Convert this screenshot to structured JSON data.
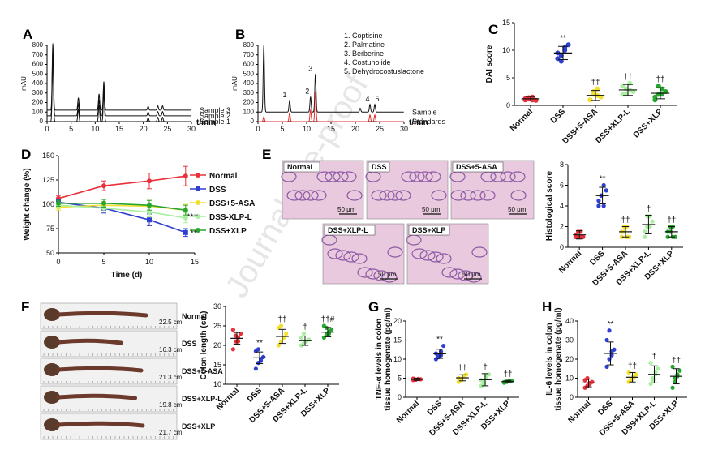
{
  "watermark": "Journal Pre-proof",
  "panels": {
    "A": {
      "letter": "A"
    },
    "B": {
      "letter": "B"
    },
    "C": {
      "letter": "C"
    },
    "D": {
      "letter": "D"
    },
    "E": {
      "letter": "E"
    },
    "F": {
      "letter": "F"
    },
    "G": {
      "letter": "G"
    },
    "H": {
      "letter": "H"
    }
  },
  "colors": {
    "normal": "#e8313a",
    "dss": "#2f3fd0",
    "asa": "#f2e030",
    "xlpl": "#a9efa0",
    "xlp": "#27a52f"
  },
  "chart_data": [
    {
      "id": "A",
      "type": "line",
      "ylabel": "mAU",
      "xlabel": "t/min",
      "xlim": [
        0,
        30
      ],
      "x_ticks": [
        "0",
        "5",
        "10",
        "15",
        "20",
        "25",
        "30"
      ],
      "y_ticks": [
        "0",
        "100",
        "200",
        "300",
        "400",
        "500",
        "600",
        "700",
        "800"
      ],
      "ylim": [
        0,
        800
      ],
      "series": [
        {
          "name": "Sample 3",
          "baseline": 120,
          "peaks": [
            [
              1.2,
              700
            ],
            [
              6.5,
              130
            ],
            [
              10.8,
              170
            ],
            [
              11.8,
              300
            ],
            [
              21,
              40
            ],
            [
              23,
              45
            ],
            [
              24,
              45
            ]
          ]
        },
        {
          "name": "Sample 2",
          "baseline": 60,
          "peaks": [
            [
              1.2,
              690
            ],
            [
              6.5,
              130
            ],
            [
              10.8,
              170
            ],
            [
              11.8,
              300
            ],
            [
              21,
              40
            ],
            [
              23,
              45
            ],
            [
              24,
              45
            ]
          ]
        },
        {
          "name": "Sample 1",
          "baseline": 0,
          "peaks": [
            [
              1.2,
              720
            ],
            [
              6.5,
              130
            ],
            [
              10.8,
              170
            ],
            [
              11.8,
              300
            ],
            [
              21,
              40
            ],
            [
              23,
              45
            ],
            [
              24,
              45
            ]
          ]
        }
      ]
    },
    {
      "id": "B",
      "type": "line",
      "ylabel": "mAU",
      "xlabel": "t/min",
      "xlim": [
        0,
        30
      ],
      "x_ticks": [
        "0",
        "5",
        "10",
        "15",
        "20",
        "25",
        "30"
      ],
      "y_ticks": [
        "0",
        "100",
        "200",
        "300",
        "400",
        "500",
        "600",
        "700",
        "800"
      ],
      "ylim": [
        0,
        800
      ],
      "legend": [
        "1. Coptisine",
        "2. Palmatine",
        "3. Berberine",
        "4. Costunolide",
        "5. Dehydrocostuslactone"
      ],
      "peak_labels": [
        {
          "label": "1",
          "x": 6.5
        },
        {
          "label": "2",
          "x": 10.8
        },
        {
          "label": "3",
          "x": 11.8
        },
        {
          "label": "4",
          "x": 23
        },
        {
          "label": "5",
          "x": 24
        }
      ],
      "series": [
        {
          "name": "Sample",
          "color": "#111111",
          "baseline": 100,
          "peaks": [
            [
              1.2,
              700
            ],
            [
              6.5,
              120
            ],
            [
              10.8,
              160
            ],
            [
              11.8,
              400
            ],
            [
              21,
              40
            ],
            [
              23,
              80
            ],
            [
              24,
              80
            ]
          ]
        },
        {
          "name": "Standards",
          "color": "#e03030",
          "baseline": 0,
          "peaks": [
            [
              1.2,
              50
            ],
            [
              6.5,
              90
            ],
            [
              10.8,
              120
            ],
            [
              11.8,
              310
            ],
            [
              23,
              70
            ],
            [
              24,
              70
            ]
          ]
        }
      ]
    },
    {
      "id": "C",
      "type": "scatter",
      "ylabel": "DAI score",
      "ylim": [
        0,
        15
      ],
      "y_ticks": [
        "0",
        "5",
        "10",
        "15"
      ],
      "categories": [
        "Normal",
        "DSS",
        "DSS+5-ASA",
        "DSS+XLP-L",
        "DSS+XLP"
      ],
      "means": [
        1.2,
        9.5,
        1.8,
        2.8,
        2.2
      ],
      "sd": [
        0.4,
        1.2,
        0.9,
        1.0,
        1.0
      ],
      "points": [
        [
          1.0,
          1.3,
          1.5,
          0.9,
          1.2,
          1.4,
          1.0
        ],
        [
          8.5,
          9.0,
          10.0,
          11.0,
          9.5,
          8.0,
          10.5
        ],
        [
          1.0,
          2.0,
          3.0,
          1.5,
          1.0,
          2.5,
          1.8
        ],
        [
          2.0,
          3.0,
          4.0,
          2.5,
          3.5,
          2.0,
          2.8
        ],
        [
          1.5,
          2.0,
          3.0,
          2.5,
          1.0,
          3.5,
          2.0
        ]
      ],
      "annotations": [
        "",
        "**",
        "††",
        "††",
        "††"
      ]
    },
    {
      "id": "D",
      "type": "line",
      "ylabel": "Weight change (%)",
      "xlabel": "Time (d)",
      "xlim": [
        0,
        15
      ],
      "ylim": [
        50,
        150
      ],
      "x_ticks": [
        "0",
        "5",
        "10",
        "15"
      ],
      "y_ticks": [
        "50",
        "75",
        "100",
        "125",
        "150"
      ],
      "x": [
        0,
        5,
        10,
        14
      ],
      "series": [
        {
          "name": "Normal",
          "values": [
            106,
            119,
            124,
            129
          ],
          "err": [
            3,
            5,
            8,
            10
          ]
        },
        {
          "name": "DSS",
          "values": [
            102,
            96,
            84,
            71
          ],
          "err": [
            3,
            5,
            6,
            4
          ]
        },
        {
          "name": "DSS+5-ASA",
          "values": [
            97,
            99,
            98,
            94
          ],
          "err": [
            3,
            4,
            6,
            6
          ]
        },
        {
          "name": "DSS-XLP-L",
          "values": [
            99,
            96,
            92,
            86
          ],
          "err": [
            3,
            4,
            5,
            5
          ]
        },
        {
          "name": "DSS+XLP",
          "values": [
            101,
            101,
            99,
            94
          ],
          "err": [
            3,
            4,
            5,
            5
          ]
        }
      ],
      "end_annotations": [
        "**†",
        "**"
      ]
    },
    {
      "id": "E",
      "type": "scatter",
      "ylabel": "Histological score",
      "ylim": [
        0,
        8
      ],
      "y_ticks": [
        "0",
        "2",
        "4",
        "6",
        "8"
      ],
      "categories": [
        "Normal",
        "DSS",
        "DSS+5-ASA",
        "DSS+XLP-L",
        "DSS+XLP"
      ],
      "means": [
        1.2,
        5.0,
        1.5,
        2.2,
        1.5
      ],
      "sd": [
        0.4,
        0.8,
        0.5,
        0.9,
        0.5
      ],
      "points": [
        [
          1.0,
          1.0,
          1.5,
          1.0,
          1.2,
          1.5,
          1.0
        ],
        [
          4.0,
          5.0,
          6.0,
          5.5,
          4.5,
          5.0,
          4.0
        ],
        [
          1.0,
          1.5,
          2.0,
          1.0,
          1.5,
          2.0,
          1.0
        ],
        [
          1.0,
          2.0,
          3.0,
          2.5,
          1.5,
          3.0,
          2.0
        ],
        [
          1.0,
          1.5,
          2.0,
          1.0,
          1.5,
          2.0,
          1.0
        ]
      ],
      "annotations": [
        "",
        "**",
        "††",
        "†",
        "††"
      ]
    },
    {
      "id": "F",
      "type": "scatter",
      "ylabel": "Colon length (cm)",
      "ylim": [
        10,
        30
      ],
      "y_ticks": [
        "10",
        "15",
        "20",
        "25",
        "30"
      ],
      "categories": [
        "Normal",
        "DSS",
        "DSS+5-ASA",
        "DSS+XLP-L",
        "DSS+XLP"
      ],
      "means": [
        21.8,
        16.8,
        22.3,
        21.2,
        23.4
      ],
      "sd": [
        1.5,
        1.5,
        1.8,
        1.2,
        1.2
      ],
      "points": [
        [
          19.0,
          21.0,
          22.0,
          23.0,
          24.0,
          22.5,
          21.0
        ],
        [
          14.0,
          15.5,
          16.0,
          17.0,
          18.5,
          19.0,
          16.5
        ],
        [
          20.0,
          21.0,
          22.0,
          23.0,
          24.5,
          25.0,
          22.0
        ],
        [
          20.0,
          20.5,
          21.0,
          21.5,
          22.0,
          23.0,
          21.0
        ],
        [
          22.0,
          23.0,
          23.5,
          24.0,
          25.0,
          24.5,
          23.0
        ]
      ],
      "annotations": [
        "",
        "**",
        "††",
        "†",
        "††#"
      ]
    },
    {
      "id": "G",
      "type": "scatter",
      "ylabel": "TNF-α levels in colon tissue homogenate (pg/ml)",
      "ylim": [
        0,
        20
      ],
      "y_ticks": [
        "0",
        "5",
        "10",
        "15",
        "20"
      ],
      "categories": [
        "Normal",
        "DSS",
        "DSS+5-ASA",
        "DSS+XLP-L",
        "DSS+XLP"
      ],
      "means": [
        4.7,
        11.4,
        5.1,
        4.6,
        4.1
      ],
      "sd": [
        0.3,
        1.2,
        0.8,
        1.6,
        0.3
      ],
      "points": [
        [
          4.5,
          4.6,
          4.8,
          4.7,
          4.9,
          4.6,
          4.8
        ],
        [
          10.0,
          11.0,
          12.0,
          13.5,
          11.5,
          10.5,
          11.0
        ],
        [
          4.0,
          4.5,
          5.5,
          6.0,
          5.0,
          4.8,
          5.5
        ],
        [
          3.0,
          4.0,
          5.5,
          6.0,
          4.5,
          3.5,
          5.0
        ],
        [
          3.8,
          4.0,
          4.2,
          4.3,
          4.0,
          4.1,
          4.2
        ]
      ],
      "annotations": [
        "",
        "**",
        "††",
        "†",
        "††"
      ]
    },
    {
      "id": "H",
      "type": "scatter",
      "ylabel": "IL-6 levels in colon tissue homogenate (pg/ml)",
      "ylim": [
        0,
        40
      ],
      "y_ticks": [
        "0",
        "10",
        "20",
        "30",
        "40"
      ],
      "categories": [
        "Normal",
        "DSS",
        "DSS+5-ASA",
        "DSS+XLP-L",
        "DSS+XLP"
      ],
      "means": [
        7.5,
        23.0,
        10.5,
        12.0,
        11.0
      ],
      "sd": [
        2.0,
        6.0,
        2.5,
        4.5,
        4.0
      ],
      "points": [
        [
          5.0,
          6.0,
          7.0,
          8.0,
          9.0,
          10.0,
          7.5
        ],
        [
          16.0,
          20.0,
          22.0,
          25.0,
          30.0,
          35.0,
          24.0
        ],
        [
          8.0,
          9.0,
          10.0,
          12.0,
          13.0,
          9.5,
          11.0
        ],
        [
          7.0,
          10.0,
          12.0,
          15.0,
          18.0,
          9.0,
          13.0
        ],
        [
          5.0,
          8.0,
          11.0,
          14.0,
          16.0,
          10.0,
          12.0
        ]
      ],
      "annotations": [
        "",
        "**",
        "††",
        "†",
        "††"
      ]
    }
  ],
  "histology": {
    "panels": [
      {
        "label": "Normal",
        "scale": "50 μm"
      },
      {
        "label": "DSS",
        "scale": "50 μm"
      },
      {
        "label": "DSS+5-ASA",
        "scale": "50 μm"
      },
      {
        "label": "DSS+XLP-L",
        "scale": "50 μm"
      },
      {
        "label": "DSS+XLP",
        "scale": "50 μm"
      }
    ]
  },
  "colon_photos": [
    {
      "label": "Normal",
      "length": "22.5 cm"
    },
    {
      "label": "DSS",
      "length": "16.3 cm"
    },
    {
      "label": "DSS+5-ASA",
      "length": "21.3 cm"
    },
    {
      "label": "DSS+XLP-L",
      "length": "19.8 cm"
    },
    {
      "label": "DSS+XLP",
      "length": "21.7 cm"
    }
  ]
}
